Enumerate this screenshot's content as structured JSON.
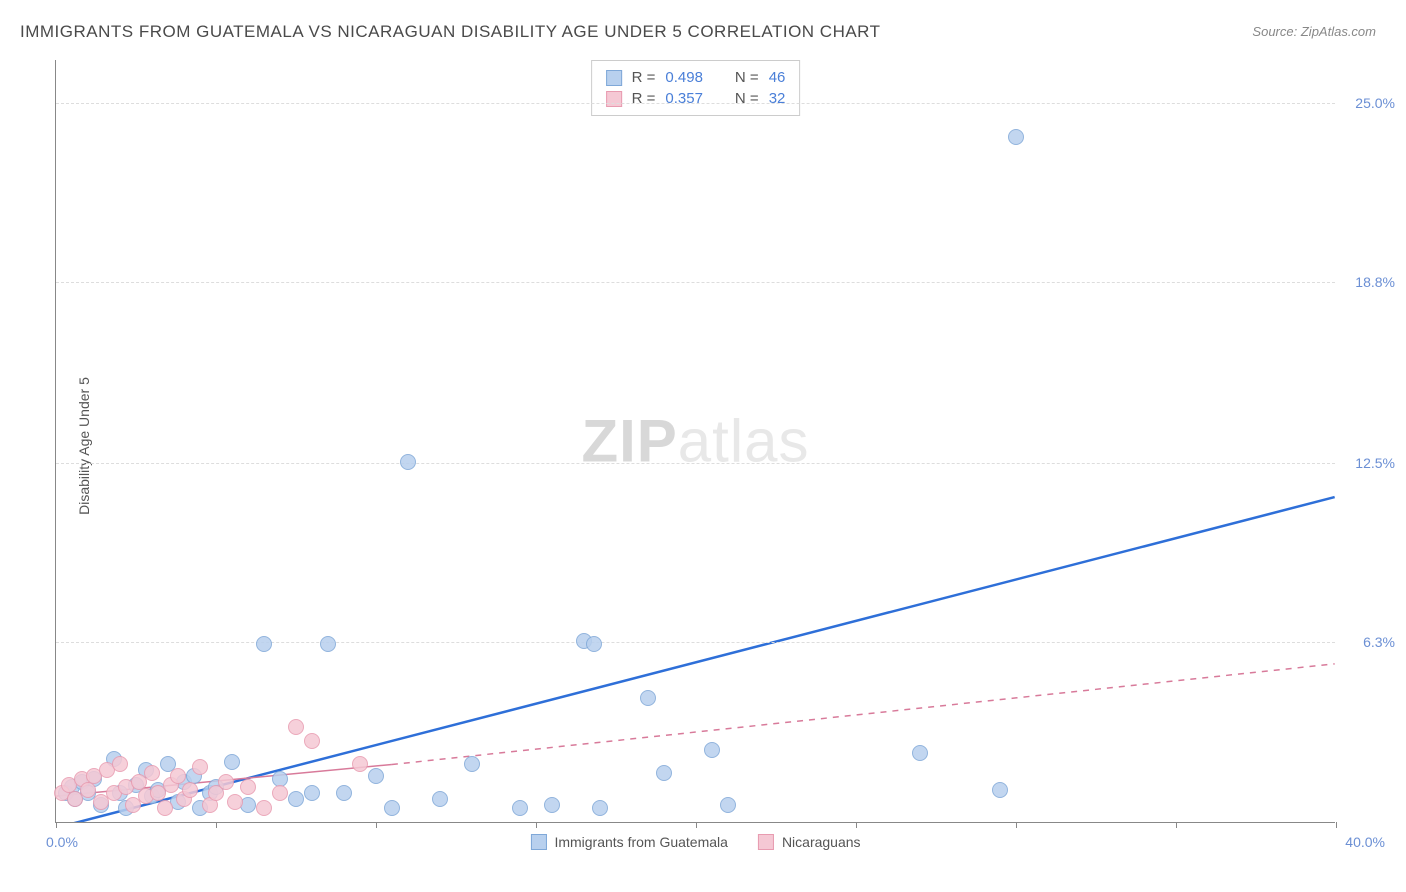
{
  "title": "IMMIGRANTS FROM GUATEMALA VS NICARAGUAN DISABILITY AGE UNDER 5 CORRELATION CHART",
  "source_label": "Source:",
  "source_value": "ZipAtlas.com",
  "y_axis_title": "Disability Age Under 5",
  "watermark": {
    "bold": "ZIP",
    "light": "atlas"
  },
  "chart": {
    "type": "scatter",
    "xlim": [
      0,
      40
    ],
    "ylim": [
      0,
      26.5
    ],
    "x_label_min": "0.0%",
    "x_label_max": "40.0%",
    "x_ticks": [
      0,
      5,
      10,
      15,
      20,
      25,
      30,
      35,
      40
    ],
    "y_gridlines": [
      {
        "value": 6.3,
        "label": "6.3%"
      },
      {
        "value": 12.5,
        "label": "12.5%"
      },
      {
        "value": 18.8,
        "label": "18.8%"
      },
      {
        "value": 25.0,
        "label": "25.0%"
      }
    ],
    "background_color": "#ffffff",
    "grid_color": "#dddddd",
    "axis_color": "#888888",
    "tick_label_color": "#6b8fd4",
    "series": [
      {
        "name": "Immigrants from Guatemala",
        "marker_fill": "#b8d0ee",
        "marker_stroke": "#7fa8d8",
        "marker_radius": 8,
        "line_color": "#2e6fd8",
        "line_width": 2.5,
        "line_dash": "solid",
        "trend": {
          "x1": 0,
          "y1": -0.2,
          "x2": 40,
          "y2": 11.3
        },
        "r_value": "0.498",
        "n_value": "46",
        "points": [
          [
            0.3,
            1.0
          ],
          [
            0.5,
            1.2
          ],
          [
            0.6,
            0.8
          ],
          [
            0.8,
            1.4
          ],
          [
            1.0,
            1.0
          ],
          [
            1.2,
            1.5
          ],
          [
            1.4,
            0.6
          ],
          [
            1.8,
            2.2
          ],
          [
            2.0,
            1.0
          ],
          [
            2.2,
            0.5
          ],
          [
            2.5,
            1.3
          ],
          [
            2.8,
            1.8
          ],
          [
            3.0,
            0.9
          ],
          [
            3.2,
            1.1
          ],
          [
            3.5,
            2.0
          ],
          [
            3.8,
            0.7
          ],
          [
            4.0,
            1.4
          ],
          [
            4.3,
            1.6
          ],
          [
            4.5,
            0.5
          ],
          [
            4.8,
            1.0
          ],
          [
            5.0,
            1.2
          ],
          [
            5.5,
            2.1
          ],
          [
            6.0,
            0.6
          ],
          [
            6.5,
            6.2
          ],
          [
            7.0,
            1.5
          ],
          [
            7.5,
            0.8
          ],
          [
            8.0,
            1.0
          ],
          [
            8.5,
            6.2
          ],
          [
            9.0,
            1.0
          ],
          [
            10.0,
            1.6
          ],
          [
            10.5,
            0.5
          ],
          [
            11.0,
            12.5
          ],
          [
            12.0,
            0.8
          ],
          [
            13.0,
            2.0
          ],
          [
            14.5,
            0.5
          ],
          [
            15.5,
            0.6
          ],
          [
            16.5,
            6.3
          ],
          [
            16.8,
            6.2
          ],
          [
            17.0,
            0.5
          ],
          [
            18.5,
            4.3
          ],
          [
            19.0,
            1.7
          ],
          [
            20.5,
            2.5
          ],
          [
            21.0,
            0.6
          ],
          [
            27.0,
            2.4
          ],
          [
            29.5,
            1.1
          ],
          [
            30.0,
            23.8
          ]
        ]
      },
      {
        "name": "Nicaraguans",
        "marker_fill": "#f5c8d4",
        "marker_stroke": "#e89bb0",
        "marker_radius": 8,
        "line_color": "#d87a9a",
        "line_width": 1.5,
        "line_dash": "dashed",
        "trend_solid": {
          "x1": 0,
          "y1": 0.9,
          "x2": 10.5,
          "y2": 2.0
        },
        "trend": {
          "x1": 10.5,
          "y1": 2.0,
          "x2": 40,
          "y2": 5.5
        },
        "r_value": "0.357",
        "n_value": "32",
        "points": [
          [
            0.2,
            1.0
          ],
          [
            0.4,
            1.3
          ],
          [
            0.6,
            0.8
          ],
          [
            0.8,
            1.5
          ],
          [
            1.0,
            1.1
          ],
          [
            1.2,
            1.6
          ],
          [
            1.4,
            0.7
          ],
          [
            1.6,
            1.8
          ],
          [
            1.8,
            1.0
          ],
          [
            2.0,
            2.0
          ],
          [
            2.2,
            1.2
          ],
          [
            2.4,
            0.6
          ],
          [
            2.6,
            1.4
          ],
          [
            2.8,
            0.9
          ],
          [
            3.0,
            1.7
          ],
          [
            3.2,
            1.0
          ],
          [
            3.4,
            0.5
          ],
          [
            3.6,
            1.3
          ],
          [
            3.8,
            1.6
          ],
          [
            4.0,
            0.8
          ],
          [
            4.2,
            1.1
          ],
          [
            4.5,
            1.9
          ],
          [
            4.8,
            0.6
          ],
          [
            5.0,
            1.0
          ],
          [
            5.3,
            1.4
          ],
          [
            5.6,
            0.7
          ],
          [
            6.0,
            1.2
          ],
          [
            6.5,
            0.5
          ],
          [
            7.0,
            1.0
          ],
          [
            7.5,
            3.3
          ],
          [
            8.0,
            2.8
          ],
          [
            9.5,
            2.0
          ]
        ]
      }
    ],
    "stats_box": {
      "r_label": "R =",
      "n_label": "N ="
    },
    "legend_swatch_blue_fill": "#b8d0ee",
    "legend_swatch_blue_stroke": "#7fa8d8",
    "legend_swatch_pink_fill": "#f5c8d4",
    "legend_swatch_pink_stroke": "#e89bb0"
  }
}
